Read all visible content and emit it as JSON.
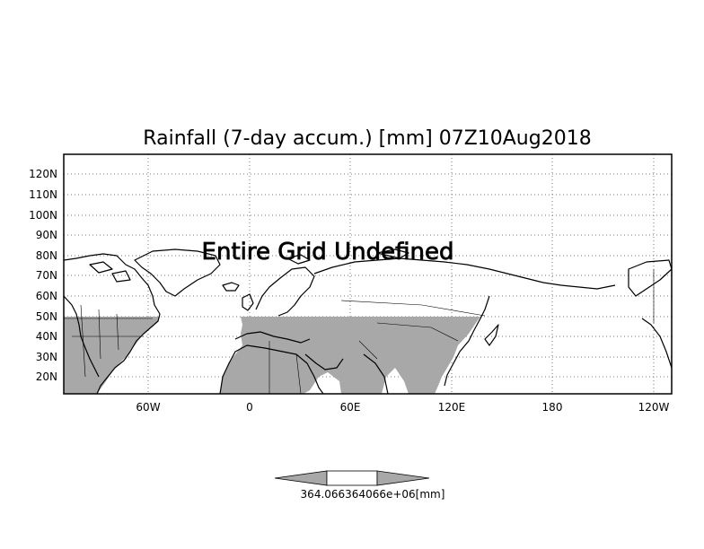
{
  "title": "Rainfall (7-day accum.) [mm] 07Z10Aug2018",
  "overlay_message": "Entire Grid Undefined",
  "lat_labels": [
    "120N",
    "110N",
    "100N",
    "90N",
    "80N",
    "70N",
    "60N",
    "50N",
    "40N",
    "30N",
    "20N"
  ],
  "lon_labels": [
    "60W",
    "0",
    "60E",
    "120E",
    "180",
    "120W"
  ],
  "colorbar": {
    "label": "364.066364066e+06[mm]",
    "colors": {
      "arrows": "#a8a8a8",
      "center": "#ffffff"
    }
  },
  "colors": {
    "shaded_land": "#a8a8a8",
    "grid": "#777777",
    "coast": "#000000"
  }
}
